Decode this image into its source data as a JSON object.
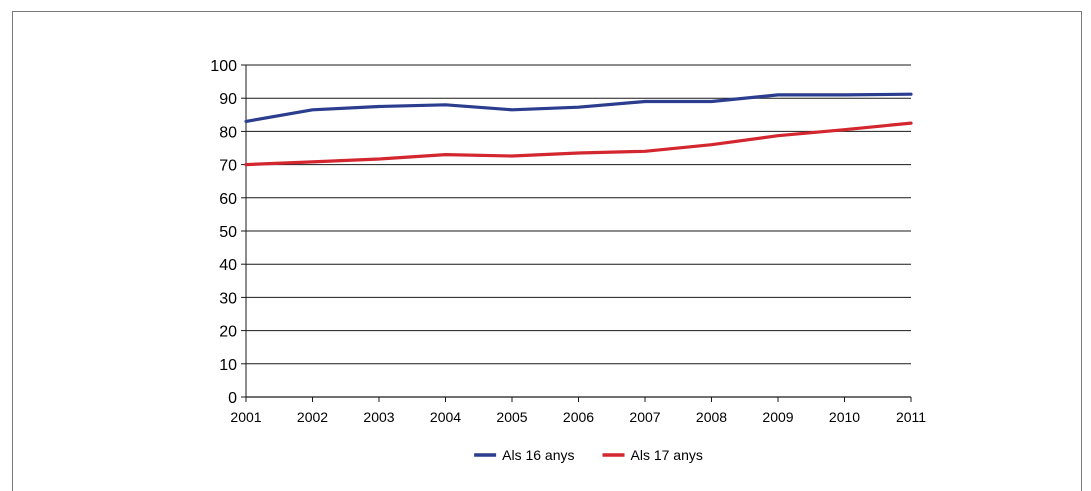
{
  "chart_data": {
    "type": "line",
    "title": "",
    "xlabel": "",
    "ylabel": "",
    "x": [
      "2001",
      "2002",
      "2003",
      "2004",
      "2005",
      "2006",
      "2007",
      "2008",
      "2009",
      "2010",
      "2011"
    ],
    "ylim": [
      0,
      100
    ],
    "yticks": [
      0,
      10,
      20,
      30,
      40,
      50,
      60,
      70,
      80,
      90,
      100
    ],
    "grid": true,
    "legend_position": "bottom",
    "series": [
      {
        "name": "Als 16 anys",
        "color": "#2b3d8f",
        "values": [
          83.0,
          86.5,
          87.5,
          88.0,
          86.5,
          87.3,
          89.0,
          89.0,
          91.0,
          91.0,
          91.2
        ]
      },
      {
        "name": "Als 17 anys",
        "color": "#d3262e",
        "values": [
          70.0,
          70.8,
          71.7,
          73.0,
          72.6,
          73.5,
          74.0,
          76.0,
          78.7,
          80.5,
          82.5
        ]
      }
    ]
  }
}
